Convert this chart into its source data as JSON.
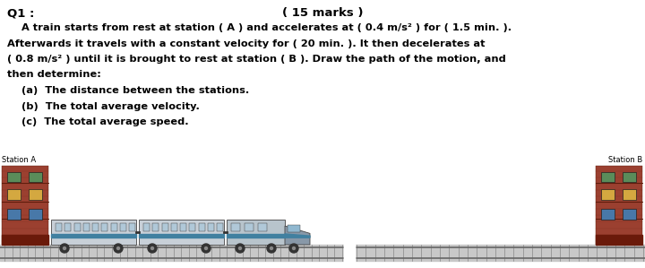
{
  "title_left": "Q1 :",
  "title_right": "( 15 marks )",
  "line1": "    A train starts from rest at station ( A ) and accelerates at ( 0.4 m/s² ) for ( 1.5 min. ).",
  "line2": "Afterwards it travels with a constant velocity for ( 20 min. ). It then decelerates at",
  "line3": "( 0.8 m/s² ) until it is brought to rest at station ( B ). Draw the path of the motion, and",
  "line4": "then determine:",
  "line5a": "    (a)  The distance between the stations.",
  "line5b": "    (b)  The total average velocity.",
  "line5c": "    (c)  The total average speed.",
  "label_A": "Station A",
  "label_B": "Station B",
  "bg_color": "#ffffff",
  "text_color": "#000000",
  "font_size_title": 9.5,
  "font_size_body": 8.2,
  "font_size_label": 6.0,
  "brick_color": "#9B4030",
  "window_green": "#5a8c5a",
  "window_yellow": "#d4a840",
  "window_blue": "#4878a8",
  "ground_color": "#c8c8c8",
  "ground_dark": "#aaaaaa",
  "train_body": "#c8d0d8",
  "train_stripe": "#4080a0",
  "train_nose": "#8898a8"
}
